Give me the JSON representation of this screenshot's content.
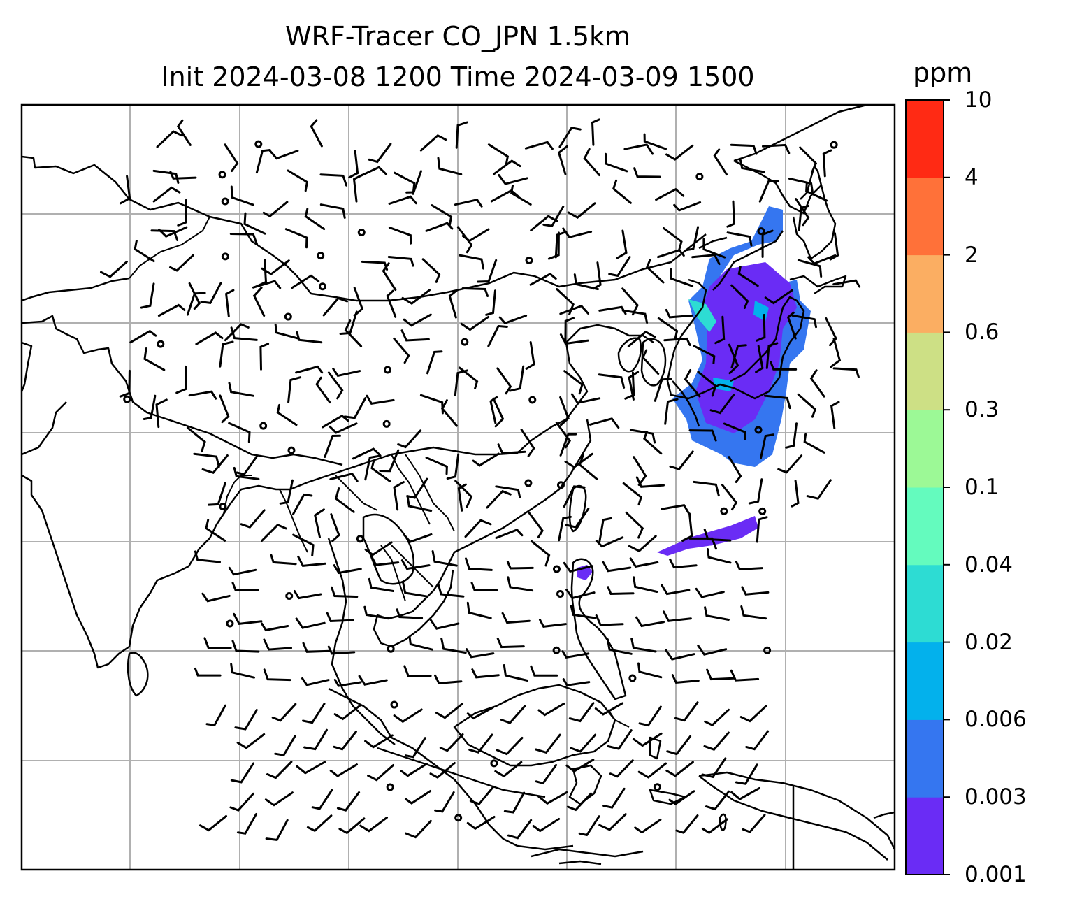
{
  "title_line1": "WRF-Tracer CO_JPN 1.5km",
  "title_line2": "Init 2024-03-08 1200 Time 2024-03-09 1500",
  "colorbar": {
    "unit": "ppm",
    "ticks": [
      "0.001",
      "0.003",
      "0.006",
      "0.02",
      "0.04",
      "0.1",
      "0.3",
      "0.6",
      "2",
      "4",
      "10"
    ],
    "colors": [
      "#6a2cf5",
      "#3576f0",
      "#03b1ec",
      "#2ddcd3",
      "#64fbbe",
      "#9cf996",
      "#cde085",
      "#fbae62",
      "#ff7139",
      "#ff2a14"
    ]
  },
  "map": {
    "gridlines": true,
    "features": [
      "coastlines",
      "national-borders",
      "wind-barbs",
      "co-tracer-plume"
    ]
  }
}
